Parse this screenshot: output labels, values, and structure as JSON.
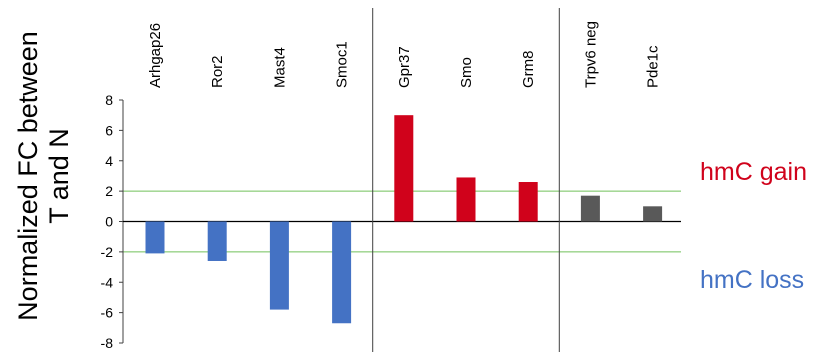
{
  "chart_data": {
    "type": "bar",
    "ylabel_lines": [
      "Normalized FC between",
      "T and N"
    ],
    "categories": [
      "Arhgap26",
      "Ror2",
      "Mast4",
      "Smoc1",
      "Gpr37",
      "Smo",
      "Grm8",
      "Trpv6 neg",
      "Pde1c"
    ],
    "values": [
      -2.1,
      -2.6,
      -5.8,
      -6.7,
      7.0,
      2.9,
      2.6,
      1.7,
      1.0
    ],
    "groups": [
      {
        "categories": [
          "Arhgap26",
          "Ror2",
          "Mast4",
          "Smoc1"
        ],
        "color": "#4472C4"
      },
      {
        "categories": [
          "Gpr37",
          "Smo",
          "Grm8"
        ],
        "color": "#D0021B"
      },
      {
        "categories": [
          "Trpv6 neg",
          "Pde1c"
        ],
        "color": "#595959"
      }
    ],
    "ylim": [
      -8,
      8
    ],
    "yticks": [
      8,
      6,
      4,
      2,
      0,
      -2,
      -4,
      -6,
      -8
    ],
    "threshold_lines": [
      2,
      -2
    ],
    "threshold_color": "#70C05A",
    "annotations": [
      {
        "text": "hmC gain",
        "color": "#D0021B"
      },
      {
        "text": "hmC loss",
        "color": "#4472C4"
      }
    ]
  }
}
